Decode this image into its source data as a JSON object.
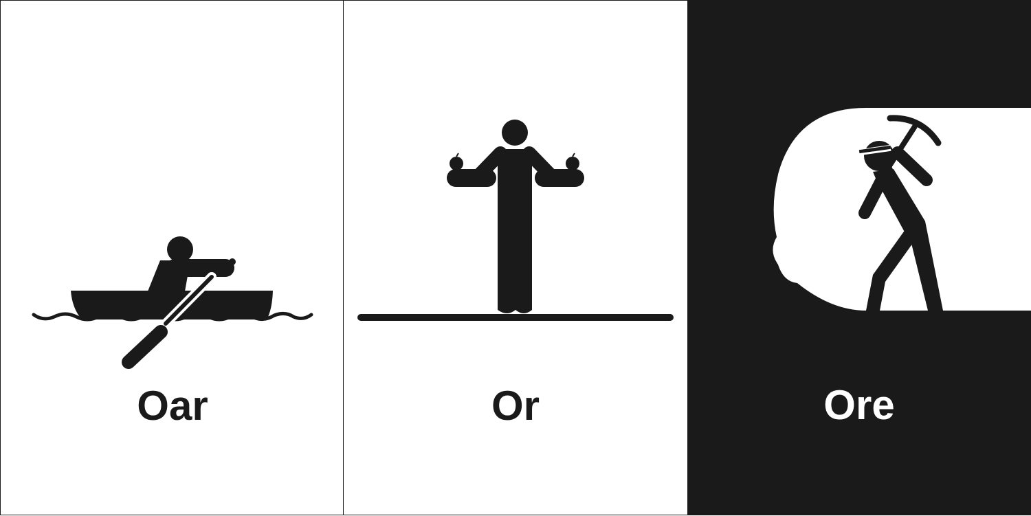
{
  "panels": [
    {
      "word": "Oar",
      "icon": "rowing-boat-icon",
      "background": "#ffffff",
      "text_color": "#1a1a1a"
    },
    {
      "word": "Or",
      "icon": "person-choosing-icon",
      "background": "#ffffff",
      "text_color": "#1a1a1a"
    },
    {
      "word": "Ore",
      "icon": "miner-pickaxe-icon",
      "background": "#1a1a1a",
      "text_color": "#ffffff"
    }
  ]
}
